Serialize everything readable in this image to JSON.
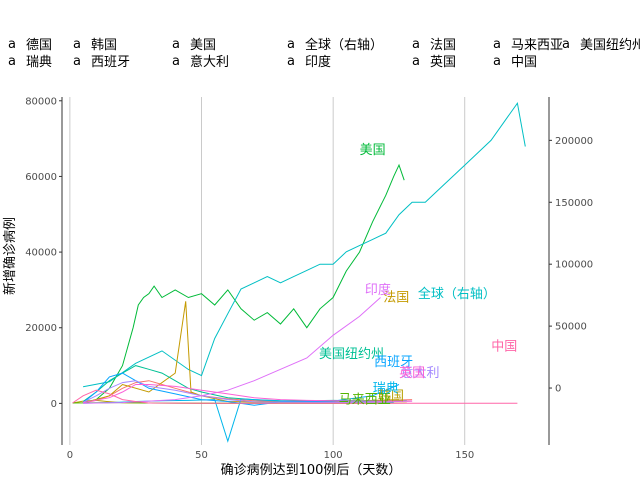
{
  "chart_data": {
    "type": "line",
    "xlabel": "确诊病例达到100例后（天数）",
    "ylabel": "新增确诊病例",
    "xlim": [
      -3,
      182
    ],
    "ylim": [
      -11000,
      81000
    ],
    "ylim_right": [
      -46000,
      235000
    ],
    "x_ticks": [
      0,
      50,
      100,
      150
    ],
    "y_ticks": [
      0,
      20000,
      40000,
      60000,
      80000
    ],
    "y_ticks_right": [
      0,
      50000,
      100000,
      150000,
      200000
    ],
    "grid": "vertical-major",
    "legend_position": "top",
    "legend_glyph": "a",
    "series": [
      {
        "name": "德国",
        "color": "#F8766D",
        "axis": "left",
        "label_at": null,
        "points": [
          [
            5,
            100
          ],
          [
            10,
            800
          ],
          [
            15,
            2000
          ],
          [
            20,
            4000
          ],
          [
            25,
            5500
          ],
          [
            30,
            6000
          ],
          [
            35,
            5000
          ],
          [
            40,
            4000
          ],
          [
            45,
            3000
          ],
          [
            50,
            2000
          ],
          [
            60,
            1200
          ],
          [
            70,
            700
          ],
          [
            80,
            500
          ],
          [
            90,
            400
          ],
          [
            100,
            500
          ],
          [
            110,
            600
          ],
          [
            120,
            800
          ],
          [
            130,
            1000
          ]
        ]
      },
      {
        "name": "韩国",
        "color": "#B79F00",
        "axis": "left",
        "label_at": [
          122,
          2000
        ],
        "points": [
          [
            1,
            100
          ],
          [
            5,
            600
          ],
          [
            10,
            800
          ],
          [
            14,
            500
          ],
          [
            20,
            150
          ],
          [
            30,
            100
          ],
          [
            50,
            60
          ],
          [
            70,
            30
          ],
          [
            90,
            40
          ],
          [
            110,
            50
          ],
          [
            120,
            60
          ],
          [
            128,
            110
          ]
        ]
      },
      {
        "name": "美国",
        "color": "#00BA38",
        "axis": "left",
        "label_at": [
          115,
          67000
        ],
        "points": [
          [
            5,
            200
          ],
          [
            10,
            1000
          ],
          [
            15,
            4000
          ],
          [
            20,
            10000
          ],
          [
            24,
            20000
          ],
          [
            26,
            26000
          ],
          [
            28,
            28000
          ],
          [
            30,
            29000
          ],
          [
            32,
            31000
          ],
          [
            35,
            28000
          ],
          [
            40,
            30000
          ],
          [
            45,
            28000
          ],
          [
            50,
            29000
          ],
          [
            55,
            26000
          ],
          [
            60,
            30000
          ],
          [
            65,
            25000
          ],
          [
            70,
            22000
          ],
          [
            75,
            24000
          ],
          [
            80,
            21000
          ],
          [
            85,
            25000
          ],
          [
            90,
            20000
          ],
          [
            95,
            25000
          ],
          [
            100,
            28000
          ],
          [
            105,
            35000
          ],
          [
            110,
            40000
          ],
          [
            115,
            48000
          ],
          [
            120,
            55000
          ],
          [
            123,
            60000
          ],
          [
            125,
            63000
          ],
          [
            127,
            59000
          ]
        ]
      },
      {
        "name": "全球（右轴）",
        "color": "#00BFC4",
        "axis": "right",
        "label_at": [
          147,
          76000
        ],
        "points": [
          [
            5,
            1000
          ],
          [
            15,
            5000
          ],
          [
            25,
            20000
          ],
          [
            35,
            30000
          ],
          [
            45,
            15000
          ],
          [
            50,
            10000
          ],
          [
            55,
            40000
          ],
          [
            60,
            60000
          ],
          [
            65,
            80000
          ],
          [
            70,
            85000
          ],
          [
            75,
            90000
          ],
          [
            80,
            85000
          ],
          [
            85,
            90000
          ],
          [
            90,
            95000
          ],
          [
            95,
            100000
          ],
          [
            100,
            100000
          ],
          [
            105,
            110000
          ],
          [
            110,
            115000
          ],
          [
            115,
            120000
          ],
          [
            120,
            125000
          ],
          [
            125,
            140000
          ],
          [
            130,
            150000
          ],
          [
            135,
            150000
          ],
          [
            140,
            160000
          ],
          [
            145,
            170000
          ],
          [
            150,
            180000
          ],
          [
            155,
            190000
          ],
          [
            160,
            200000
          ],
          [
            165,
            215000
          ],
          [
            170,
            230000
          ],
          [
            173,
            195000
          ]
        ]
      },
      {
        "name": "法国",
        "color": "#C49A00",
        "axis": "left",
        "label_at": [
          124,
          28000
        ],
        "points": [
          [
            5,
            100
          ],
          [
            15,
            2000
          ],
          [
            20,
            5000
          ],
          [
            30,
            3000
          ],
          [
            40,
            8000
          ],
          [
            44,
            27000
          ],
          [
            46,
            3000
          ],
          [
            50,
            2000
          ],
          [
            60,
            500
          ],
          [
            70,
            400
          ],
          [
            90,
            600
          ],
          [
            110,
            700
          ],
          [
            120,
            900
          ],
          [
            125,
            1000
          ]
        ]
      },
      {
        "name": "马来西亚",
        "color": "#53B400",
        "axis": "left",
        "label_at": [
          112,
          1000
        ],
        "points": [
          [
            1,
            100
          ],
          [
            10,
            150
          ],
          [
            20,
            200
          ],
          [
            30,
            100
          ],
          [
            50,
            50
          ],
          [
            70,
            20
          ],
          [
            90,
            30
          ],
          [
            110,
            40
          ],
          [
            120,
            25
          ]
        ]
      },
      {
        "name": "美国纽约州",
        "color": "#00C094",
        "axis": "left",
        "label_at": [
          107,
          13000
        ],
        "points": [
          [
            5,
            500
          ],
          [
            10,
            3000
          ],
          [
            15,
            6000
          ],
          [
            20,
            8000
          ],
          [
            25,
            10000
          ],
          [
            30,
            9000
          ],
          [
            35,
            8000
          ],
          [
            40,
            6000
          ],
          [
            45,
            4000
          ],
          [
            50,
            3000
          ],
          [
            60,
            1500
          ],
          [
            70,
            1000
          ],
          [
            80,
            700
          ],
          [
            90,
            700
          ],
          [
            100,
            800
          ],
          [
            110,
            700
          ],
          [
            120,
            600
          ],
          [
            128,
            700
          ]
        ]
      },
      {
        "name": "瑞典",
        "color": "#00B6EB",
        "axis": "left",
        "label_at": [
          120,
          4000
        ],
        "points": [
          [
            5,
            50
          ],
          [
            15,
            200
          ],
          [
            25,
            500
          ],
          [
            35,
            700
          ],
          [
            45,
            800
          ],
          [
            55,
            1000
          ],
          [
            60,
            -10000
          ],
          [
            65,
            1200
          ],
          [
            75,
            800
          ],
          [
            85,
            500
          ],
          [
            95,
            300
          ],
          [
            105,
            300
          ],
          [
            115,
            400
          ],
          [
            123,
            300
          ]
        ]
      },
      {
        "name": "西班牙",
        "color": "#06A4FF",
        "axis": "left",
        "label_at": [
          123,
          11000
        ],
        "points": [
          [
            5,
            200
          ],
          [
            10,
            3000
          ],
          [
            15,
            7000
          ],
          [
            20,
            8000
          ],
          [
            25,
            6000
          ],
          [
            30,
            4000
          ],
          [
            40,
            2500
          ],
          [
            50,
            1000
          ],
          [
            60,
            500
          ],
          [
            70,
            -500
          ],
          [
            80,
            400
          ],
          [
            100,
            600
          ],
          [
            115,
            2000
          ],
          [
            120,
            3500
          ],
          [
            125,
            5000
          ]
        ]
      },
      {
        "name": "意大利",
        "color": "#A58AFF",
        "axis": "left",
        "label_at": [
          133,
          8000
        ],
        "points": [
          [
            5,
            300
          ],
          [
            10,
            2000
          ],
          [
            15,
            4000
          ],
          [
            20,
            5500
          ],
          [
            25,
            6000
          ],
          [
            30,
            4500
          ],
          [
            40,
            3500
          ],
          [
            50,
            2000
          ],
          [
            60,
            1000
          ],
          [
            70,
            400
          ],
          [
            90,
            300
          ],
          [
            110,
            200
          ],
          [
            130,
            600
          ]
        ]
      },
      {
        "name": "印度",
        "color": "#DF70F8",
        "axis": "left",
        "label_at": [
          117,
          30000
        ],
        "points": [
          [
            5,
            50
          ],
          [
            20,
            200
          ],
          [
            40,
            1000
          ],
          [
            50,
            2000
          ],
          [
            60,
            3500
          ],
          [
            70,
            6000
          ],
          [
            80,
            9000
          ],
          [
            90,
            12000
          ],
          [
            100,
            18000
          ],
          [
            110,
            23000
          ],
          [
            118,
            28000
          ]
        ]
      },
      {
        "name": "英国",
        "color": "#FB61D7",
        "axis": "left",
        "label_at": [
          130,
          8000
        ],
        "points": [
          [
            5,
            200
          ],
          [
            15,
            1500
          ],
          [
            20,
            3000
          ],
          [
            25,
            5000
          ],
          [
            30,
            5000
          ],
          [
            40,
            4500
          ],
          [
            50,
            3500
          ],
          [
            60,
            2500
          ],
          [
            70,
            1500
          ],
          [
            80,
            1000
          ],
          [
            90,
            800
          ],
          [
            100,
            700
          ],
          [
            110,
            600
          ],
          [
            130,
            600
          ]
        ]
      },
      {
        "name": "中国",
        "color": "#FF66A8",
        "axis": "left",
        "label_at": [
          165,
          15000
        ],
        "points": [
          [
            1,
            100
          ],
          [
            5,
            2000
          ],
          [
            10,
            3500
          ],
          [
            15,
            2500
          ],
          [
            20,
            1000
          ],
          [
            25,
            500
          ],
          [
            30,
            100
          ],
          [
            50,
            50
          ],
          [
            100,
            30
          ],
          [
            170,
            20
          ]
        ]
      }
    ]
  }
}
